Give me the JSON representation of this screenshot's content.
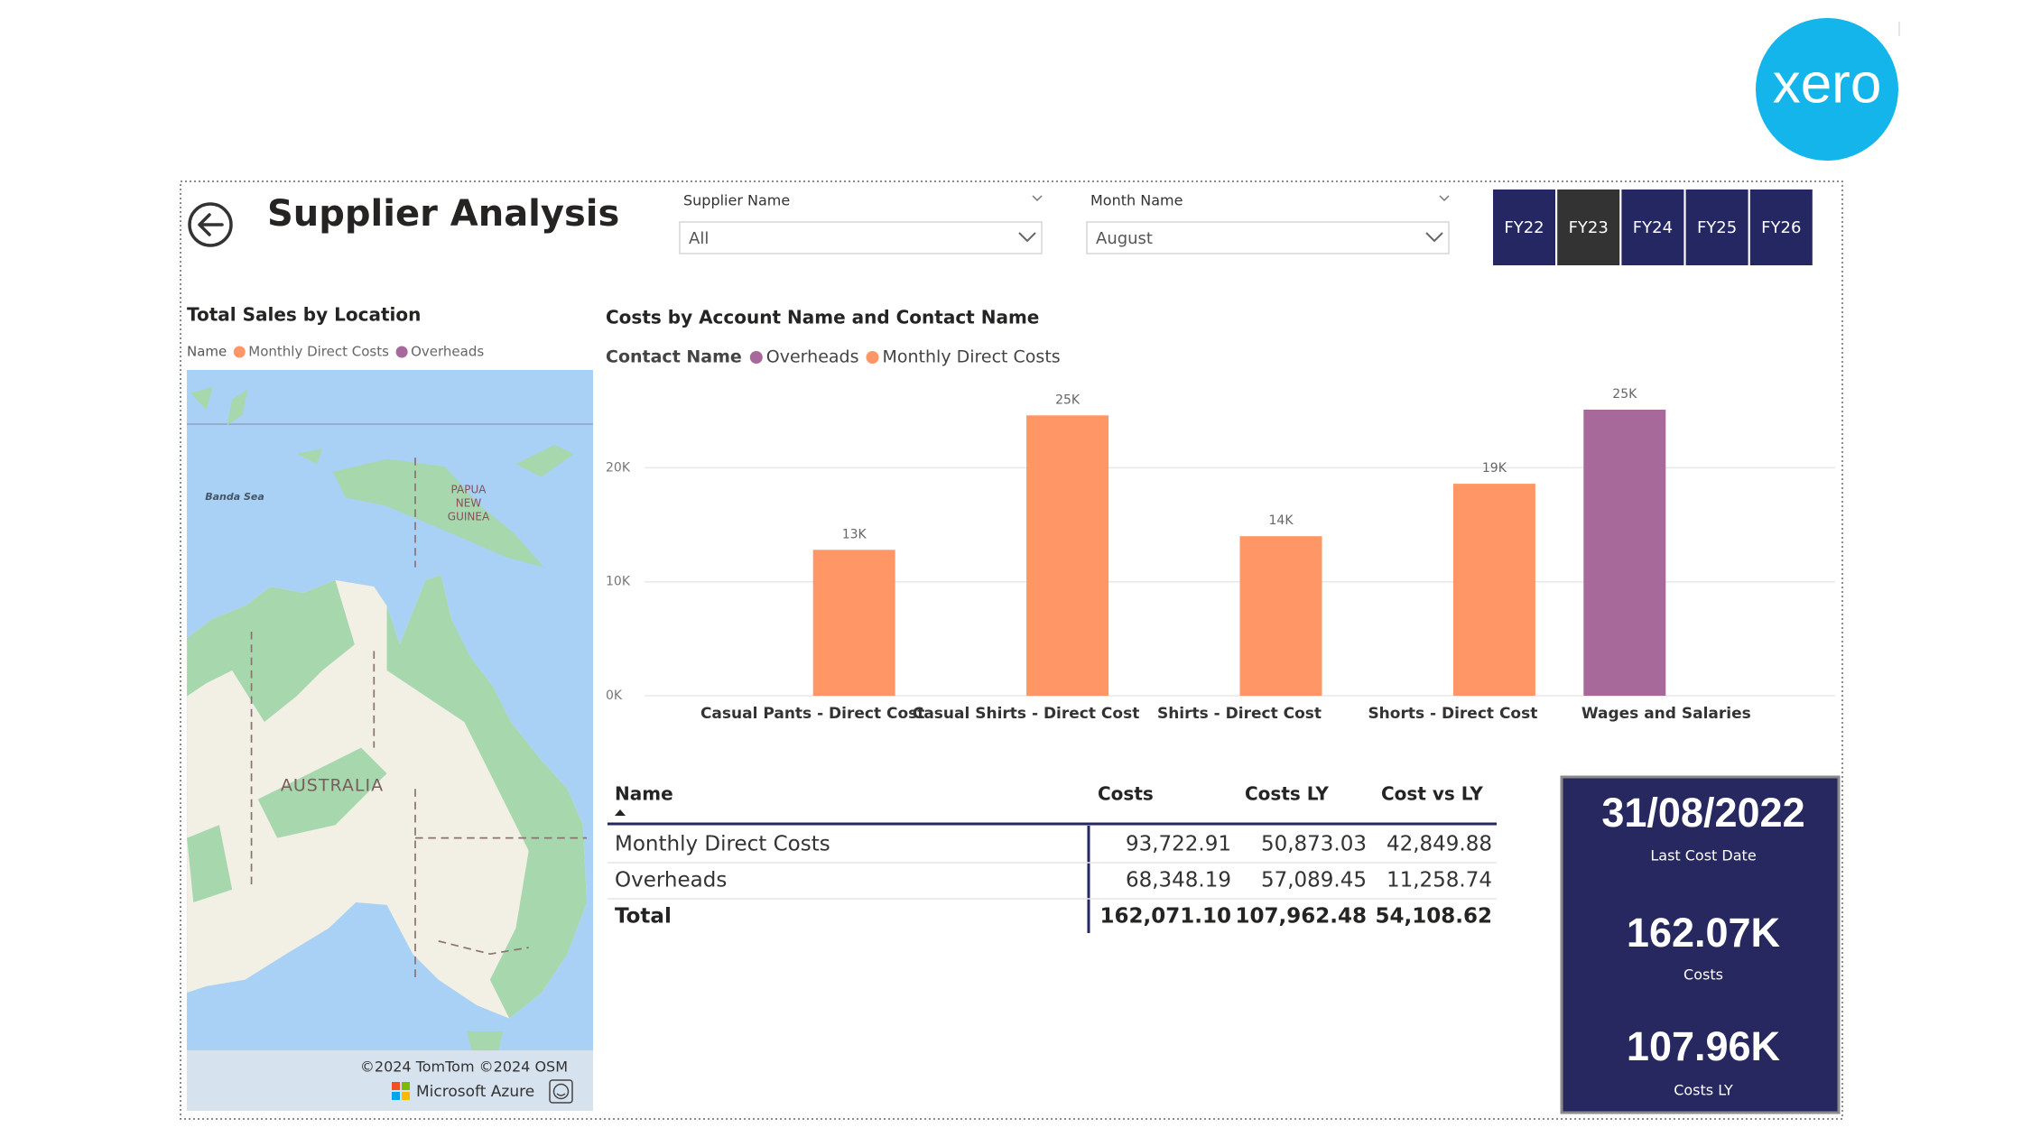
{
  "brand": "xero",
  "header": {
    "title": "Supplier Analysis"
  },
  "filters": [
    {
      "label": "Supplier Name",
      "value": "All"
    },
    {
      "label": "Month Name",
      "value": "August"
    }
  ],
  "year_buttons": [
    "FY22",
    "FY23",
    "FY24",
    "FY25",
    "FY26"
  ],
  "selected_year": "FY23",
  "map": {
    "title": "Total Sales by Location",
    "legend_title": "Name",
    "legend": [
      {
        "name": "Monthly Direct Costs",
        "color": "#fe9666"
      },
      {
        "name": "Overheads",
        "color": "#a66999"
      }
    ],
    "sea_label": "Banda Sea",
    "country_label": [
      "PAPUA",
      "NEW",
      "GUINEA"
    ],
    "continent_label": "AUSTRALIA",
    "attribution": "©2024 TomTom ©2024 OSM",
    "provider": "Microsoft Azure"
  },
  "chart": {
    "type": "bar",
    "title": "Costs by Account Name and Contact Name",
    "legend_title": "Contact Name",
    "categories": [
      "Casual Pants - Direct Cost",
      "Casual Shirts - Direct Cost",
      "Shirts - Direct Cost",
      "Shorts - Direct Cost",
      "Wages and Salaries"
    ],
    "series": [
      {
        "name": "Overheads",
        "color": "#a66999",
        "values": [
          null,
          null,
          null,
          null,
          25100
        ],
        "value_labels": [
          null,
          null,
          null,
          null,
          "25K"
        ]
      },
      {
        "name": "Monthly Direct Costs",
        "color": "#fe9666",
        "values": [
          12800,
          24600,
          14000,
          18600,
          null
        ],
        "value_labels": [
          "13K",
          "25K",
          "14K",
          "19K",
          null
        ]
      }
    ],
    "ylim": [
      0,
      27000
    ],
    "yticks": [
      {
        "value": 0,
        "label": "0K"
      },
      {
        "value": 10000,
        "label": "10K"
      },
      {
        "value": 20000,
        "label": "20K"
      }
    ],
    "grid": true
  },
  "table": {
    "columns": [
      "Name",
      "Costs",
      "Costs LY",
      "Cost vs LY"
    ],
    "rows": [
      [
        "Monthly Direct Costs",
        "93,722.91",
        "50,873.03",
        "42,849.88"
      ],
      [
        "Overheads",
        "68,348.19",
        "57,089.45",
        "11,258.74"
      ]
    ],
    "total": [
      "Total",
      "162,071.10",
      "107,962.48",
      "54,108.62"
    ]
  },
  "cards": [
    {
      "value": "31/08/2022",
      "label": "Last Cost Date"
    },
    {
      "value": "162.07K",
      "label": "Costs"
    },
    {
      "value": "107.96K",
      "label": "Costs LY"
    }
  ]
}
